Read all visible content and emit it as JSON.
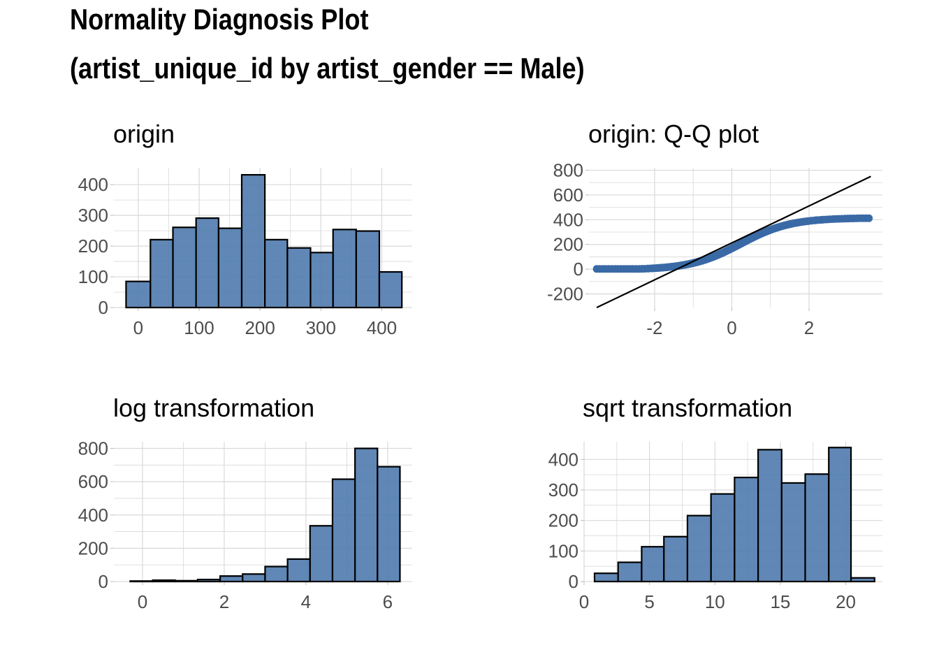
{
  "title": {
    "line1": "Normality Diagnosis Plot",
    "line2": "(artist_unique_id by artist_gender == Male)"
  },
  "colors": {
    "fill": "#4f7aad",
    "point": "#3a6aa6",
    "grid": "#d9d9d9",
    "text": "#4d4d4d"
  },
  "chart_data": [
    {
      "type": "bar",
      "title": "origin",
      "bin_edges": [
        -20,
        20,
        57,
        95,
        132,
        170,
        208,
        245,
        283,
        320,
        358,
        396,
        433
      ],
      "values": [
        85,
        221,
        261,
        291,
        258,
        432,
        221,
        194,
        179,
        254,
        249,
        116
      ],
      "xlim": [
        -40,
        450
      ],
      "ylim": [
        0,
        455
      ],
      "xticks": [
        0,
        100,
        200,
        300,
        400
      ],
      "yticks": [
        0,
        100,
        200,
        300,
        400
      ],
      "grid": true
    },
    {
      "type": "scatter",
      "title": "origin: Q-Q plot",
      "xlim": [
        -3.7,
        3.9
      ],
      "ylim": [
        -310,
        820
      ],
      "xticks": [
        -2,
        0,
        2
      ],
      "yticks": [
        -200,
        0,
        200,
        400,
        600,
        800
      ],
      "line": {
        "x": [
          -3.5,
          3.6
        ],
        "y": [
          -310,
          750
        ]
      },
      "points_x_range": [
        -3.5,
        3.55
      ],
      "grid": true
    },
    {
      "type": "bar",
      "title": "log transformation",
      "bin_edges": [
        -0.3,
        0.25,
        0.8,
        1.35,
        1.9,
        2.45,
        3.0,
        3.55,
        4.1,
        4.65,
        5.2,
        5.75,
        6.3
      ],
      "values": [
        3,
        8,
        5,
        12,
        33,
        45,
        90,
        135,
        335,
        615,
        800,
        690
      ],
      "xlim": [
        -0.7,
        6.6
      ],
      "ylim": [
        0,
        840
      ],
      "xticks": [
        0,
        2,
        4,
        6
      ],
      "yticks": [
        0,
        200,
        400,
        600,
        800
      ],
      "grid": true
    },
    {
      "type": "bar",
      "title": "sqrt transformation",
      "bin_edges": [
        0.8,
        2.6,
        4.4,
        6.1,
        7.9,
        9.7,
        11.5,
        13.3,
        15.1,
        16.9,
        18.7,
        20.4,
        22.2
      ],
      "values": [
        27,
        63,
        114,
        147,
        216,
        287,
        341,
        432,
        323,
        352,
        439,
        12
      ],
      "xlim": [
        0,
        22.8
      ],
      "ylim": [
        0,
        458
      ],
      "xticks": [
        0,
        5,
        10,
        15,
        20
      ],
      "yticks": [
        0,
        100,
        200,
        300,
        400
      ],
      "grid": true
    }
  ]
}
